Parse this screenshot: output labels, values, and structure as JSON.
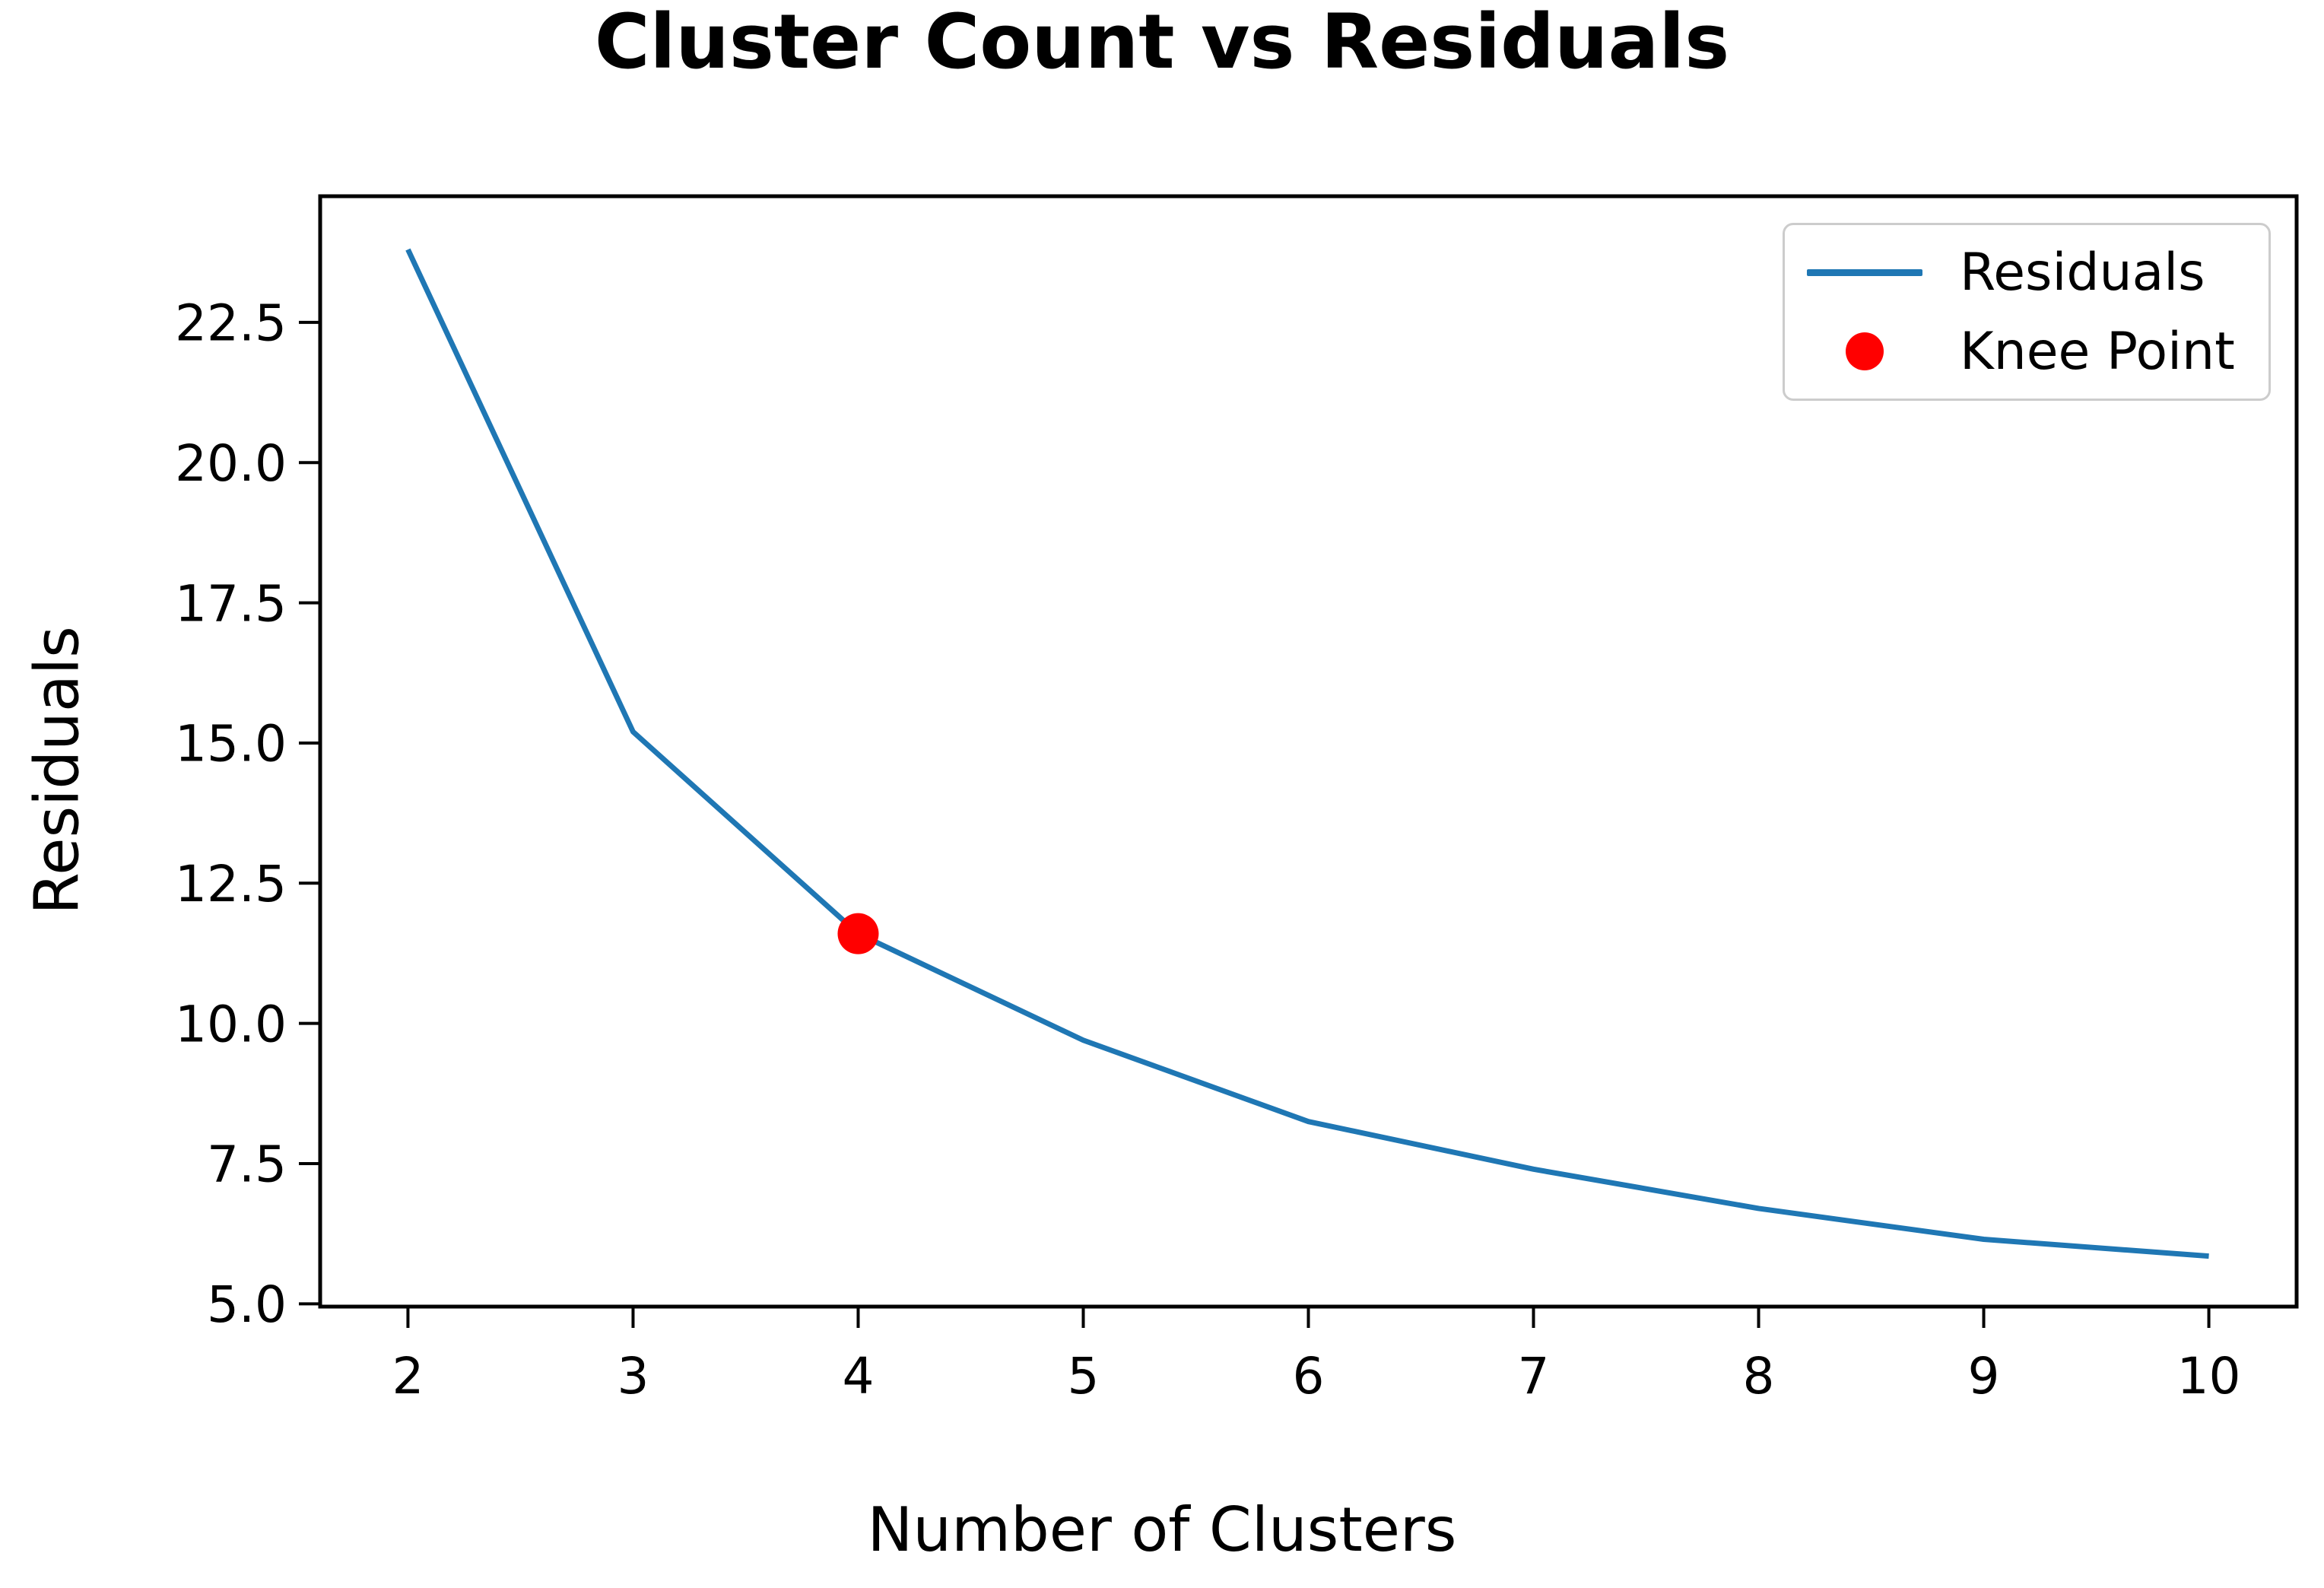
{
  "figure": {
    "background": "#ffffff"
  },
  "chart_data": {
    "type": "line",
    "title": "Cluster Count vs Residuals",
    "xlabel": "Number of Clusters",
    "ylabel": "Residuals",
    "x": [
      2,
      3,
      4,
      5,
      6,
      7,
      8,
      9,
      10
    ],
    "series": [
      {
        "name": "Residuals",
        "color": "#1f77b4",
        "line_width": 7,
        "values": [
          23.8,
          15.2,
          11.6,
          9.7,
          8.25,
          7.4,
          6.7,
          6.15,
          5.85
        ]
      }
    ],
    "annotations": [
      {
        "name": "Knee Point",
        "type": "point",
        "x": 4,
        "y": 11.6,
        "color": "#ff0000",
        "marker_radius": 27
      }
    ],
    "xticks": [
      "2",
      "3",
      "4",
      "5",
      "6",
      "7",
      "8",
      "9",
      "10"
    ],
    "xtick_values": [
      2,
      3,
      4,
      5,
      6,
      7,
      8,
      9,
      10
    ],
    "yticks": [
      "22.5",
      "20.0",
      "17.5",
      "15.0",
      "12.5",
      "10.0",
      "7.5",
      "5.0"
    ],
    "ytick_values": [
      22.5,
      20.0,
      17.5,
      15.0,
      12.5,
      10.0,
      7.5,
      5.0
    ],
    "xlim": [
      1.61,
      10.39
    ],
    "ylim": [
      4.95,
      24.75
    ],
    "grid": false,
    "legend": {
      "position": "upper right",
      "entries": [
        {
          "label": "Residuals",
          "marker": "line",
          "color": "#1f77b4"
        },
        {
          "label": "Knee Point",
          "marker": "dot",
          "color": "#ff0000"
        }
      ]
    },
    "colors": {
      "axis": "#000000",
      "text": "#000000",
      "legend_border": "#cccccc"
    }
  }
}
